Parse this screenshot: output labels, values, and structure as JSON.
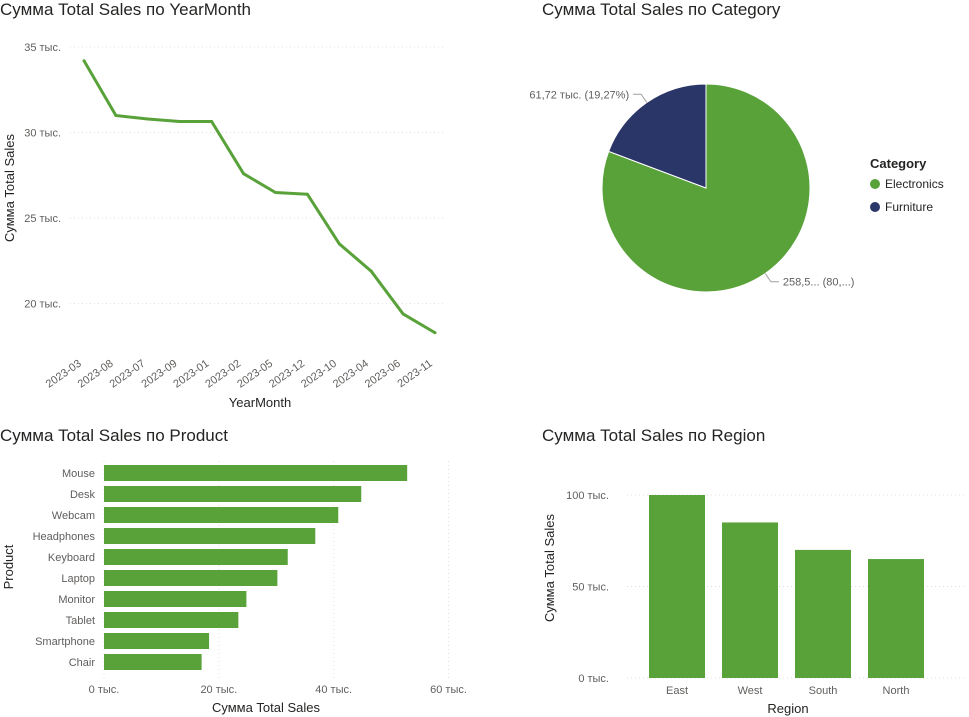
{
  "chart_data": [
    {
      "type": "line",
      "title": "Сумма Total Sales по YearMonth",
      "xlabel": "YearMonth",
      "ylabel": "Сумма Total Sales",
      "categories": [
        "2023-03",
        "2023-08",
        "2023-07",
        "2023-09",
        "2023-01",
        "2023-02",
        "2023-05",
        "2023-12",
        "2023-10",
        "2023-04",
        "2023-06",
        "2023-11"
      ],
      "values": [
        34200,
        31000,
        30800,
        30650,
        30650,
        27600,
        26500,
        26400,
        23500,
        21900,
        19400,
        18300
      ],
      "ylim": [
        17000,
        36000
      ],
      "yticks": [
        20000,
        25000,
        30000,
        35000
      ],
      "ytick_labels": [
        "20 тыс.",
        "25 тыс.",
        "30 тыс.",
        "35 тыс."
      ],
      "color": "#59a23a",
      "grid": true
    },
    {
      "type": "pie",
      "title": "Сумма Total Sales по Category",
      "legend_title": "Category",
      "legend_position": "right",
      "slices": [
        {
          "name": "Electronics",
          "value": 258500,
          "label": "258,5... (80,...)",
          "color": "#59a23a"
        },
        {
          "name": "Furniture",
          "value": 61720,
          "label": "61,72 тыс. (19,27%)",
          "color": "#2b3668"
        }
      ]
    },
    {
      "type": "bar",
      "orientation": "horizontal",
      "title": "Сумма Total Sales по Product",
      "xlabel": "Сумма Total Sales",
      "ylabel": "Product",
      "categories": [
        "Mouse",
        "Desk",
        "Webcam",
        "Headphones",
        "Keyboard",
        "Laptop",
        "Monitor",
        "Tablet",
        "Smartphone",
        "Chair"
      ],
      "values": [
        52800,
        44800,
        40800,
        36800,
        32000,
        30200,
        24800,
        23400,
        18300,
        17000
      ],
      "xlim": [
        0,
        62000
      ],
      "xticks": [
        0,
        20000,
        40000,
        60000
      ],
      "xtick_labels": [
        "0 тыс.",
        "20 тыс.",
        "40 тыс.",
        "60 тыс."
      ],
      "color": "#59a23a",
      "grid": true
    },
    {
      "type": "bar",
      "orientation": "vertical",
      "title": "Сумма Total Sales по Region",
      "xlabel": "Region",
      "ylabel": "Сумма Total Sales",
      "categories": [
        "East",
        "West",
        "South",
        "North"
      ],
      "values": [
        100000,
        85000,
        70000,
        65000
      ],
      "ylim": [
        0,
        100000
      ],
      "yticks": [
        0,
        50000,
        100000
      ],
      "ytick_labels": [
        "0 тыс.",
        "50 тыс.",
        "100 тыс."
      ],
      "color": "#59a23a",
      "grid": true
    }
  ]
}
